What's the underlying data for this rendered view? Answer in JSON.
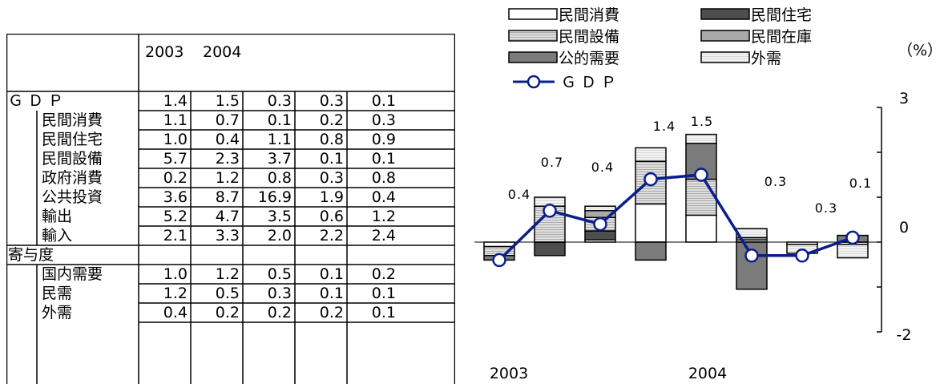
{
  "table": {
    "years": [
      "2003",
      "2004"
    ],
    "rows": [
      {
        "label": "ＧＤＰ",
        "indent": false,
        "values": [
          "1.4",
          "1.5",
          "0.3",
          "0.3",
          "0.1"
        ]
      },
      {
        "label": "民間消費",
        "indent": true,
        "values": [
          "1.1",
          "0.7",
          "0.1",
          "0.2",
          "0.3"
        ]
      },
      {
        "label": "民間住宅",
        "indent": true,
        "values": [
          "1.0",
          "0.4",
          "1.1",
          "0.8",
          "0.9"
        ]
      },
      {
        "label": "民間設備",
        "indent": true,
        "values": [
          "5.7",
          "2.3",
          "3.7",
          "0.1",
          "0.1"
        ]
      },
      {
        "label": "政府消費",
        "indent": true,
        "values": [
          "0.2",
          "1.2",
          "0.8",
          "0.3",
          "0.8"
        ]
      },
      {
        "label": "公共投資",
        "indent": true,
        "values": [
          "3.6",
          "8.7",
          "16.9",
          "1.9",
          "0.4"
        ]
      },
      {
        "label": "輸出",
        "indent": true,
        "values": [
          "5.2",
          "4.7",
          "3.5",
          "0.6",
          "1.2"
        ]
      },
      {
        "label": "輸入",
        "indent": true,
        "values": [
          "2.1",
          "3.3",
          "2.0",
          "2.2",
          "2.4"
        ]
      },
      {
        "label": "寄与度",
        "indent": false,
        "values": [
          "",
          "",
          "",
          "",
          ""
        ]
      },
      {
        "label": "国内需要",
        "indent": true,
        "values": [
          "1.0",
          "1.2",
          "0.5",
          "0.1",
          "0.2"
        ]
      },
      {
        "label": "民需",
        "indent": true,
        "values": [
          "1.2",
          "0.5",
          "0.3",
          "0.1",
          "0.1"
        ]
      },
      {
        "label": "外需",
        "indent": true,
        "values": [
          "0.4",
          "0.2",
          "0.2",
          "0.2",
          "0.1"
        ]
      }
    ]
  },
  "chart_data": {
    "type": "bar",
    "stacked": true,
    "categories": [
      "",
      "",
      "",
      "",
      "",
      "",
      "",
      ""
    ],
    "x_group_labels": [
      {
        "label": "2003",
        "at": 0
      },
      {
        "label": "2004",
        "at": 4
      }
    ],
    "unit_label": "（%）",
    "ylim": [
      -2,
      3
    ],
    "yticks": [
      3,
      0,
      -2
    ],
    "legend_position": "top",
    "series": [
      {
        "name": "民間消費",
        "color": "#ffffff",
        "values": [
          -0.1,
          0.0,
          0.05,
          0.85,
          0.6,
          0.0,
          -0.05,
          -0.05
        ]
      },
      {
        "name": "民間住宅",
        "color": "#555555",
        "values": [
          0.0,
          -0.3,
          0.2,
          0.0,
          0.0,
          0.0,
          0.0,
          0.0
        ]
      },
      {
        "name": "民間設備",
        "color": "#d0d0d0",
        "values": [
          -0.2,
          0.8,
          0.3,
          0.95,
          0.8,
          0.05,
          0.0,
          0.0
        ]
      },
      {
        "name": "民間在庫",
        "color": "#b4b4b4",
        "values": [
          0.0,
          0.0,
          0.15,
          0.0,
          0.0,
          0.05,
          0.0,
          0.0
        ]
      },
      {
        "name": "公的需要",
        "color": "#8c8c8c",
        "values": [
          -0.1,
          0.0,
          0.0,
          -0.4,
          0.8,
          -1.05,
          0.0,
          0.15
        ]
      },
      {
        "name": "外需",
        "color": "#efefef",
        "values": [
          0.0,
          0.2,
          0.1,
          0.3,
          0.2,
          0.2,
          -0.2,
          -0.3
        ]
      },
      {
        "name": "ＧＤＰ",
        "type": "line",
        "color": "#0a1e8c",
        "values": [
          -0.4,
          0.7,
          0.4,
          1.4,
          1.5,
          -0.3,
          -0.3,
          0.1
        ]
      }
    ],
    "bar_labels": [
      "0.4",
      "0.7",
      "0.4",
      "1.4",
      "1.5",
      "0.3",
      "0.3",
      "0.1"
    ]
  }
}
